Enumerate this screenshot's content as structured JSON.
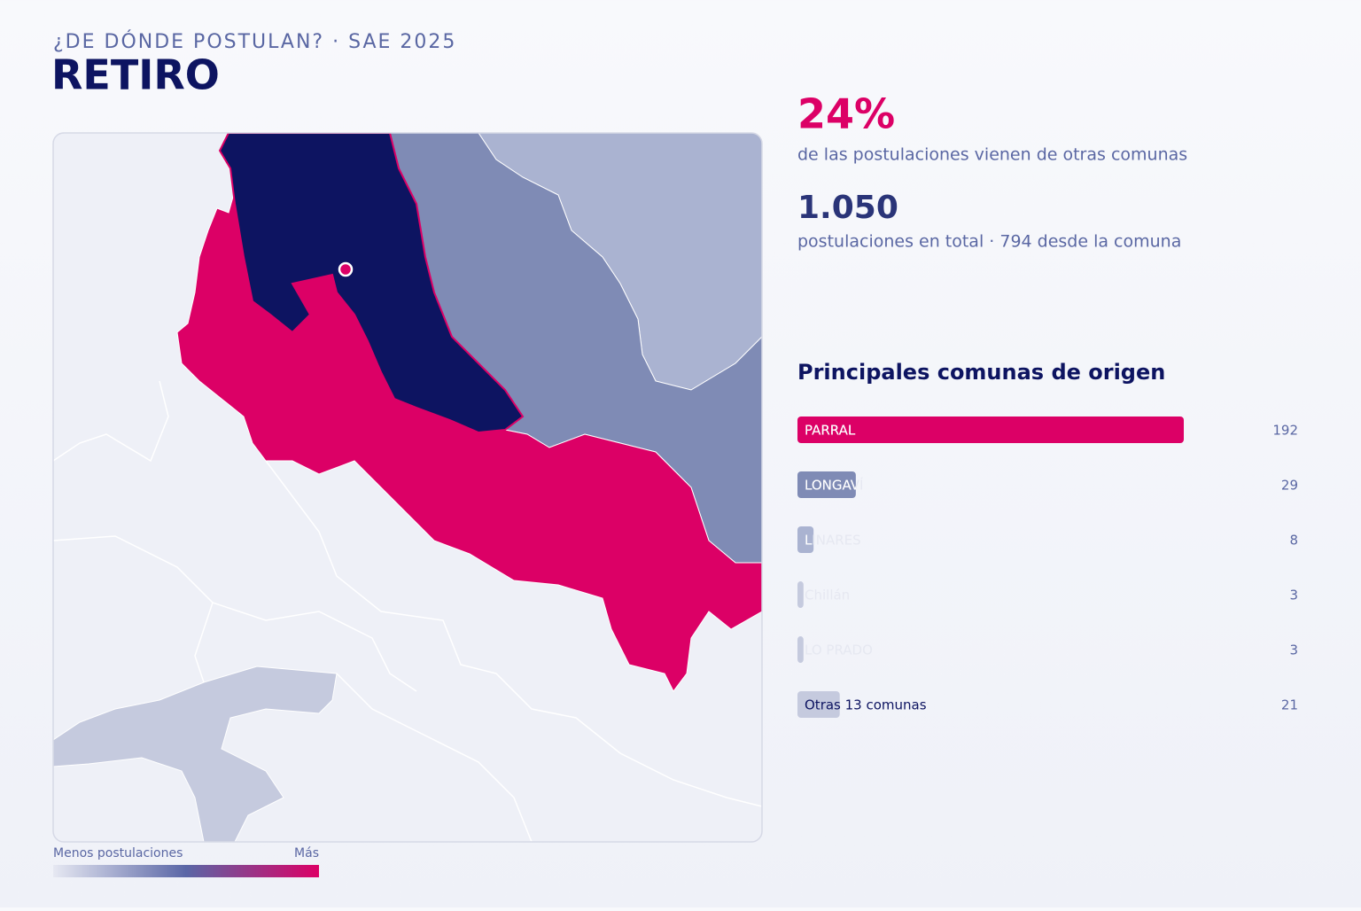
{
  "header": {
    "kicker": "¿DE DÓNDE POSTULAN? · SAE 2025",
    "title": "RETIRO"
  },
  "stats": {
    "share": "24%",
    "share_text": "de las postulaciones vienen de otras comunas",
    "total": "1.050",
    "total_text": "postulaciones en total · 794 desde la comuna"
  },
  "legend": {
    "low": "Menos postulaciones",
    "high": "Más"
  },
  "chart_data": {
    "type": "bar",
    "title": "Principales comunas de origen",
    "categories": [
      "PARRAL",
      "LONGAVÍ",
      "LINARES",
      "Chillán",
      "LO PRADO",
      "Otras 13 comunas"
    ],
    "values": [
      192,
      29,
      8,
      3,
      3,
      21
    ],
    "colors": [
      "#dc0066",
      "#7f8bb5",
      "#aab3d1",
      "#c5cade",
      "#c5cade",
      "#c5cade"
    ]
  }
}
